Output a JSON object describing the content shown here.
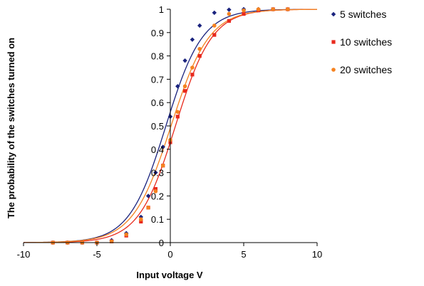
{
  "chart_data": {
    "type": "scatter",
    "title": "",
    "xlabel": "Input voltage V",
    "ylabel": "The probability of the switches turned on",
    "xlim": [
      -10,
      10
    ],
    "ylim": [
      0,
      1
    ],
    "x_ticks": [
      "-10",
      "-5",
      "0",
      "5",
      "10"
    ],
    "y_ticks": [
      "0",
      "0.1",
      "0.2",
      "0.3",
      "0.4",
      "0.5",
      "0.6",
      "0.7",
      "0.8",
      "0.9",
      "1"
    ],
    "legend_position": "right",
    "series": [
      {
        "name": "5 switches",
        "color": "#1a237e",
        "marker": "diamond",
        "fit_curve": {
          "center": -0.3,
          "scale": 1.25
        },
        "points": [
          [
            -8,
            0.0
          ],
          [
            -7,
            0.0
          ],
          [
            -6,
            0.0
          ],
          [
            -5,
            0.0
          ],
          [
            -4,
            0.01
          ],
          [
            -3,
            0.04
          ],
          [
            -2,
            0.11
          ],
          [
            -1.5,
            0.2
          ],
          [
            -1,
            0.3
          ],
          [
            -0.5,
            0.41
          ],
          [
            0,
            0.54
          ],
          [
            0.5,
            0.67
          ],
          [
            1,
            0.78
          ],
          [
            1.5,
            0.87
          ],
          [
            2,
            0.93
          ],
          [
            3,
            0.985
          ],
          [
            4,
            0.998
          ],
          [
            5,
            1.0
          ],
          [
            6,
            1.0
          ],
          [
            7,
            1.0
          ],
          [
            8,
            1.0
          ]
        ]
      },
      {
        "name": "10 switches",
        "color": "#e8291c",
        "marker": "square",
        "fit_curve": {
          "center": 0.35,
          "scale": 1.25
        },
        "points": [
          [
            -8,
            0.0
          ],
          [
            -7,
            0.0
          ],
          [
            -6,
            0.0
          ],
          [
            -5,
            0.0
          ],
          [
            -4,
            0.005
          ],
          [
            -3,
            0.03
          ],
          [
            -2,
            0.09
          ],
          [
            -1.5,
            0.15
          ],
          [
            -1,
            0.23
          ],
          [
            -0.5,
            0.33
          ],
          [
            0,
            0.43
          ],
          [
            0.5,
            0.54
          ],
          [
            1,
            0.65
          ],
          [
            1.5,
            0.72
          ],
          [
            2,
            0.8
          ],
          [
            3,
            0.89
          ],
          [
            4,
            0.95
          ],
          [
            5,
            0.98
          ],
          [
            6,
            0.995
          ],
          [
            7,
            1.0
          ],
          [
            8,
            1.0
          ]
        ]
      },
      {
        "name": "20 switches",
        "color": "#f58220",
        "marker": "circle",
        "fit_curve": {
          "center": 0.05,
          "scale": 1.3
        },
        "points": [
          [
            -8,
            0.0
          ],
          [
            -7,
            0.0
          ],
          [
            -6,
            0.0
          ],
          [
            -5,
            0.0
          ],
          [
            -4,
            0.005
          ],
          [
            -3,
            0.035
          ],
          [
            -2,
            0.1
          ],
          [
            -1.5,
            0.15
          ],
          [
            -1,
            0.22
          ],
          [
            -0.5,
            0.33
          ],
          [
            0,
            0.44
          ],
          [
            0.5,
            0.56
          ],
          [
            1,
            0.67
          ],
          [
            1.5,
            0.75
          ],
          [
            2,
            0.83
          ],
          [
            3,
            0.93
          ],
          [
            4,
            0.98
          ],
          [
            5,
            0.995
          ],
          [
            6,
            1.0
          ],
          [
            7,
            1.0
          ],
          [
            8,
            1.0
          ]
        ]
      }
    ]
  }
}
